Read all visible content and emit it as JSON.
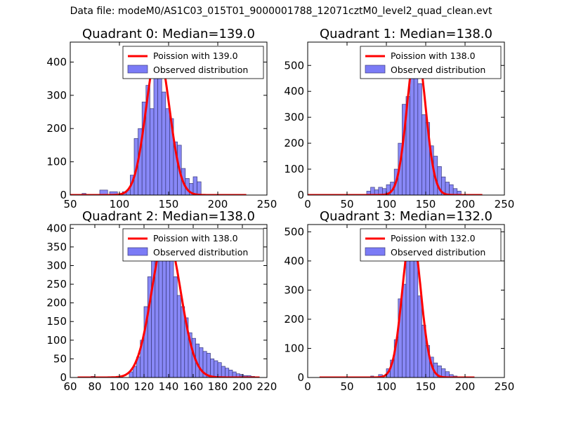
{
  "figure_title": "Data file: modeM0/AS1C03_015T01_9000001788_12071cztM0_level2_quad_clean.evt",
  "colors": {
    "bar_fill": "#7b7bf6",
    "bar_edge": "#3a3a7a",
    "curve": "#ff0000",
    "axis": "#000000"
  },
  "chart_data": [
    {
      "type": "bar",
      "title": "Quadrant 0: Median=139.0",
      "legend": [
        "Poission with 139.0",
        "Observed distribution"
      ],
      "legend_position": "upper-right",
      "xlim": [
        50,
        250
      ],
      "ylim": [
        0,
        460
      ],
      "xticks": [
        50,
        100,
        150,
        200,
        250
      ],
      "yticks": [
        0,
        100,
        200,
        300,
        400
      ],
      "bin_edges": [
        103,
        107,
        111,
        115,
        119,
        123,
        127,
        131,
        135,
        139,
        143,
        147,
        151,
        155,
        159,
        163,
        167,
        171,
        175,
        179,
        183
      ],
      "counts": [
        10,
        15,
        60,
        170,
        200,
        280,
        330,
        260,
        400,
        430,
        310,
        260,
        230,
        160,
        150,
        80,
        50,
        35,
        55,
        40
      ],
      "tail_bins": [
        {
          "x0": 62,
          "x1": 66,
          "count": 5
        },
        {
          "x0": 80,
          "x1": 88,
          "count": 15
        },
        {
          "x0": 90,
          "x1": 98,
          "count": 10
        }
      ],
      "curve": {
        "label": "Poission with 139.0",
        "mean": 139.0,
        "peak": 435,
        "sigma": 11.8,
        "x_start": 50,
        "x_end": 229
      }
    },
    {
      "type": "bar",
      "title": "Quadrant 1: Median=138.0",
      "legend": [
        "Poission with 138.0",
        "Observed distribution"
      ],
      "legend_position": "upper-right",
      "xlim": [
        0,
        250
      ],
      "ylim": [
        0,
        590
      ],
      "xticks": [
        0,
        50,
        100,
        150,
        200,
        250
      ],
      "yticks": [
        0,
        100,
        200,
        300,
        400,
        500
      ],
      "bin_edges": [
        75,
        80,
        85,
        90,
        95,
        100,
        105,
        110,
        115,
        120,
        125,
        130,
        135,
        140,
        145,
        150,
        155,
        160,
        165,
        170,
        175,
        180,
        185,
        190,
        195
      ],
      "counts": [
        15,
        30,
        20,
        30,
        25,
        40,
        50,
        100,
        200,
        350,
        380,
        540,
        570,
        430,
        310,
        280,
        190,
        150,
        110,
        70,
        50,
        40,
        25,
        15
      ],
      "tail_bins": [],
      "curve": {
        "label": "Poission with 138.0",
        "mean": 138.0,
        "peak": 570,
        "sigma": 11.7,
        "x_start": 0,
        "x_end": 222
      }
    },
    {
      "type": "bar",
      "title": "Quadrant 2: Median=138.0",
      "legend": [
        "Poission with 138.0",
        "Observed distribution"
      ],
      "legend_position": "upper-right",
      "xlim": [
        60,
        220
      ],
      "ylim": [
        0,
        410
      ],
      "xticks": [
        60,
        80,
        100,
        120,
        140,
        160,
        180,
        200,
        220
      ],
      "yticks": [
        0,
        50,
        100,
        150,
        200,
        250,
        300,
        350,
        400
      ],
      "bin_edges": [
        108,
        111,
        114,
        117,
        120,
        123,
        126,
        129,
        132,
        135,
        138,
        141,
        144,
        147,
        150,
        153,
        156,
        159,
        162,
        165,
        168,
        171,
        174,
        177,
        180,
        183,
        186,
        189,
        192,
        195,
        198,
        201,
        204,
        207,
        210
      ],
      "counts": [
        15,
        30,
        55,
        100,
        190,
        270,
        320,
        360,
        370,
        385,
        360,
        330,
        270,
        220,
        190,
        160,
        120,
        105,
        90,
        80,
        70,
        65,
        50,
        45,
        40,
        30,
        25,
        20,
        15,
        10,
        8,
        5,
        5,
        3
      ],
      "tail_bins": [
        {
          "x0": 77,
          "x1": 80,
          "count": 3
        }
      ],
      "curve": {
        "label": "Poission with 138.0",
        "mean": 138.0,
        "peak": 385,
        "sigma": 11.7,
        "x_start": 66,
        "x_end": 214
      }
    },
    {
      "type": "bar",
      "title": "Quadrant 3: Median=132.0",
      "legend": [
        "Poission with 132.0",
        "Observed distribution"
      ],
      "legend_position": "upper-right",
      "xlim": [
        0,
        250
      ],
      "ylim": [
        0,
        525
      ],
      "xticks": [
        0,
        50,
        100,
        150,
        200,
        250
      ],
      "yticks": [
        0,
        100,
        200,
        300,
        400,
        500
      ],
      "bin_edges": [
        100,
        105,
        110,
        115,
        120,
        125,
        130,
        135,
        140,
        145,
        150,
        155,
        160,
        165,
        170,
        175,
        180,
        185,
        190
      ],
      "counts": [
        30,
        60,
        130,
        270,
        320,
        430,
        500,
        450,
        280,
        180,
        110,
        70,
        50,
        40,
        30,
        20,
        10,
        5
      ],
      "tail_bins": [
        {
          "x0": 80,
          "x1": 84,
          "count": 5
        },
        {
          "x0": 90,
          "x1": 95,
          "count": 10
        }
      ],
      "curve": {
        "label": "Poission with 132.0",
        "mean": 132.0,
        "peak": 505,
        "sigma": 11.5,
        "x_start": 15,
        "x_end": 212
      }
    }
  ]
}
